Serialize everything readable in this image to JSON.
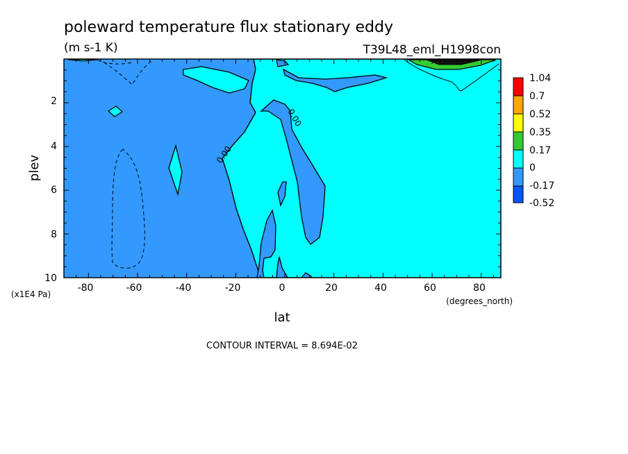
{
  "chart_data": {
    "type": "contour",
    "title": "poleward temperature flux stationary eddy",
    "units": "(m s-1 K)",
    "dataset": "T39L48_eml_H1998con",
    "xlabel": "lat",
    "x_units": "(degrees_north)",
    "ylabel": "plev",
    "y_units": "(x1E4 Pa)",
    "xlim": [
      -90,
      88
    ],
    "ylim": [
      10,
      0
    ],
    "x_ticks": [
      "-80",
      "-60",
      "-40",
      "-20",
      "0",
      "20",
      "40",
      "60",
      "80"
    ],
    "y_ticks": [
      "2",
      "4",
      "6",
      "8",
      "10"
    ],
    "colorbar": {
      "levels": [
        "1.04",
        "0.7",
        "0.52",
        "0.35",
        "0.17",
        "0",
        "-0.17",
        "-0.52"
      ],
      "colors": [
        "#ff0000",
        "#ffa500",
        "#ffff00",
        "#33cc33",
        "#00ffff",
        "#3399ff",
        "#0055ff"
      ]
    },
    "contour_labels": [
      "0.00",
      "0.00"
    ],
    "contour_interval": "CONTOUR INTERVAL = 8.694E-02"
  }
}
